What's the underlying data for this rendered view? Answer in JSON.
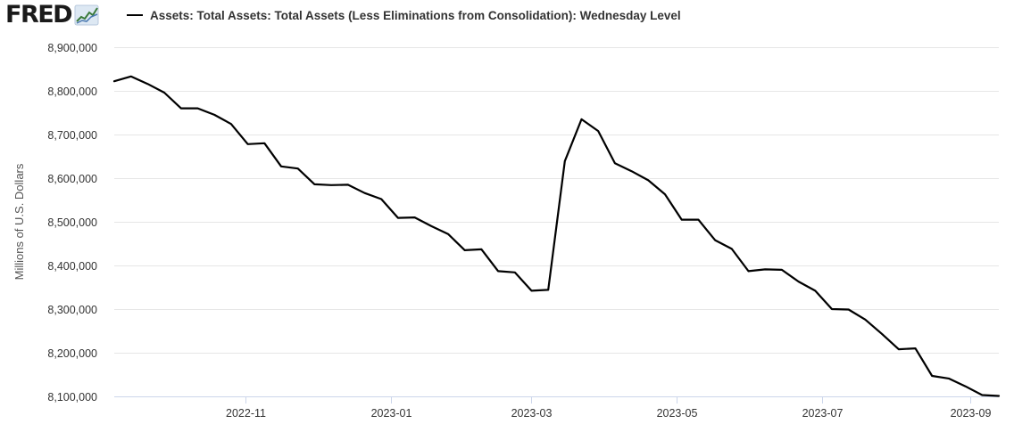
{
  "header": {
    "logo_text": "FRED",
    "logo_icon": "line-chart-icon"
  },
  "colors": {
    "series_line": "#000000",
    "grid": "#e6e6e6",
    "axis": "#ccd6eb"
  },
  "chart_data": {
    "type": "line",
    "title": "",
    "xlabel": "",
    "ylabel": "Millions of U.S. Dollars",
    "ylim": [
      8100000,
      8900000
    ],
    "yticks": [
      8100000,
      8200000,
      8300000,
      8400000,
      8500000,
      8600000,
      8700000,
      8800000,
      8900000
    ],
    "ytick_labels": [
      "8,100,000",
      "8,200,000",
      "8,300,000",
      "8,400,000",
      "8,500,000",
      "8,600,000",
      "8,700,000",
      "8,800,000",
      "8,900,000"
    ],
    "xlim": [
      "2022-09-07",
      "2023-09-13"
    ],
    "xticks": [
      "2022-11-01",
      "2023-01-01",
      "2023-03-01",
      "2023-05-01",
      "2023-07-01",
      "2023-09-01"
    ],
    "xtick_labels": [
      "2022-11",
      "2023-01",
      "2023-03",
      "2023-05",
      "2023-07",
      "2023-09"
    ],
    "grid": true,
    "legend_position": "top-left",
    "series": [
      {
        "name": "Assets: Total Assets: Total Assets (Less Eliminations from Consolidation): Wednesday Level",
        "x": [
          "2022-09-07",
          "2022-09-14",
          "2022-09-21",
          "2022-09-28",
          "2022-10-05",
          "2022-10-12",
          "2022-10-19",
          "2022-10-26",
          "2022-11-02",
          "2022-11-09",
          "2022-11-16",
          "2022-11-23",
          "2022-11-30",
          "2022-12-07",
          "2022-12-14",
          "2022-12-21",
          "2022-12-28",
          "2023-01-04",
          "2023-01-11",
          "2023-01-18",
          "2023-01-25",
          "2023-02-01",
          "2023-02-08",
          "2023-02-15",
          "2023-02-22",
          "2023-03-01",
          "2023-03-08",
          "2023-03-15",
          "2023-03-22",
          "2023-03-29",
          "2023-04-05",
          "2023-04-12",
          "2023-04-19",
          "2023-04-26",
          "2023-05-03",
          "2023-05-10",
          "2023-05-17",
          "2023-05-24",
          "2023-05-31",
          "2023-06-07",
          "2023-06-14",
          "2023-06-21",
          "2023-06-28",
          "2023-07-05",
          "2023-07-12",
          "2023-07-19",
          "2023-07-26",
          "2023-08-02",
          "2023-08-09",
          "2023-08-16",
          "2023-08-23",
          "2023-08-30",
          "2023-09-06",
          "2023-09-13"
        ],
        "values": [
          8822000,
          8833000,
          8816000,
          8796000,
          8760000,
          8760000,
          8745000,
          8724000,
          8678000,
          8680000,
          8627000,
          8622000,
          8586000,
          8584000,
          8585000,
          8566000,
          8552000,
          8509000,
          8510000,
          8490000,
          8472000,
          8435000,
          8437000,
          8387000,
          8384000,
          8342000,
          8344000,
          8639000,
          8735000,
          8708000,
          8634000,
          8616000,
          8595000,
          8563000,
          8505000,
          8505000,
          8458000,
          8438000,
          8387000,
          8391000,
          8390000,
          8363000,
          8342000,
          8300000,
          8299000,
          8276000,
          8243000,
          8208000,
          8210000,
          8147000,
          8141000,
          8123000,
          8103000,
          8101000
        ]
      }
    ]
  }
}
